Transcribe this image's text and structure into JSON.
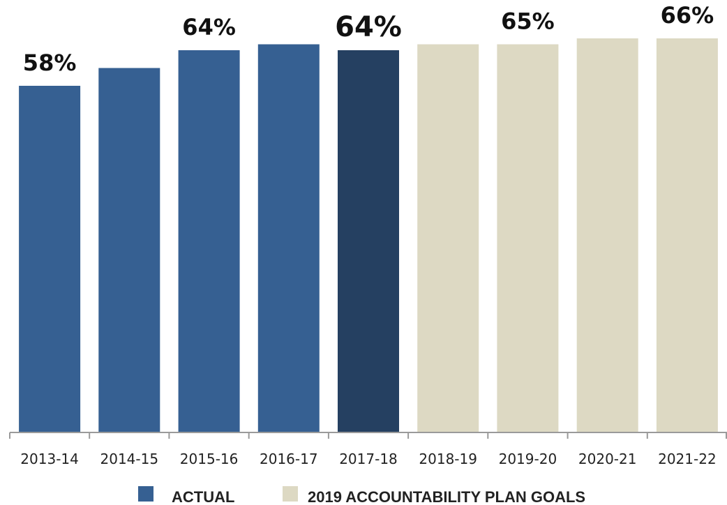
{
  "chart_data": {
    "type": "bar",
    "title": "",
    "xlabel": "",
    "ylabel": "",
    "categories": [
      "2013-14",
      "2014-15",
      "2015-16",
      "2016-17",
      "2017-18",
      "2018-19",
      "2019-20",
      "2020-21",
      "2021-22"
    ],
    "values": [
      58,
      61,
      64,
      65,
      64,
      65,
      65,
      66,
      66
    ],
    "value_labels": [
      "58%",
      "",
      "64%",
      "",
      "64%",
      "",
      "65%",
      "",
      "66%"
    ],
    "bar_groups": [
      "actual",
      "actual",
      "actual",
      "actual",
      "actual-highlight",
      "goal",
      "goal",
      "goal",
      "goal"
    ],
    "colors": {
      "actual": "#366092",
      "actual-highlight": "#254061",
      "goal": "#ddd9c3",
      "axis": "#9a9a9a"
    },
    "ylim": [
      0,
      70
    ],
    "grid": false,
    "legend": {
      "placement": "bottom",
      "entries": [
        {
          "label": "ACTUAL",
          "color": "#366092"
        },
        {
          "label": "2019 ACCOUNTABILITY PLAN GOALS",
          "color": "#ddd9c3"
        }
      ]
    }
  }
}
